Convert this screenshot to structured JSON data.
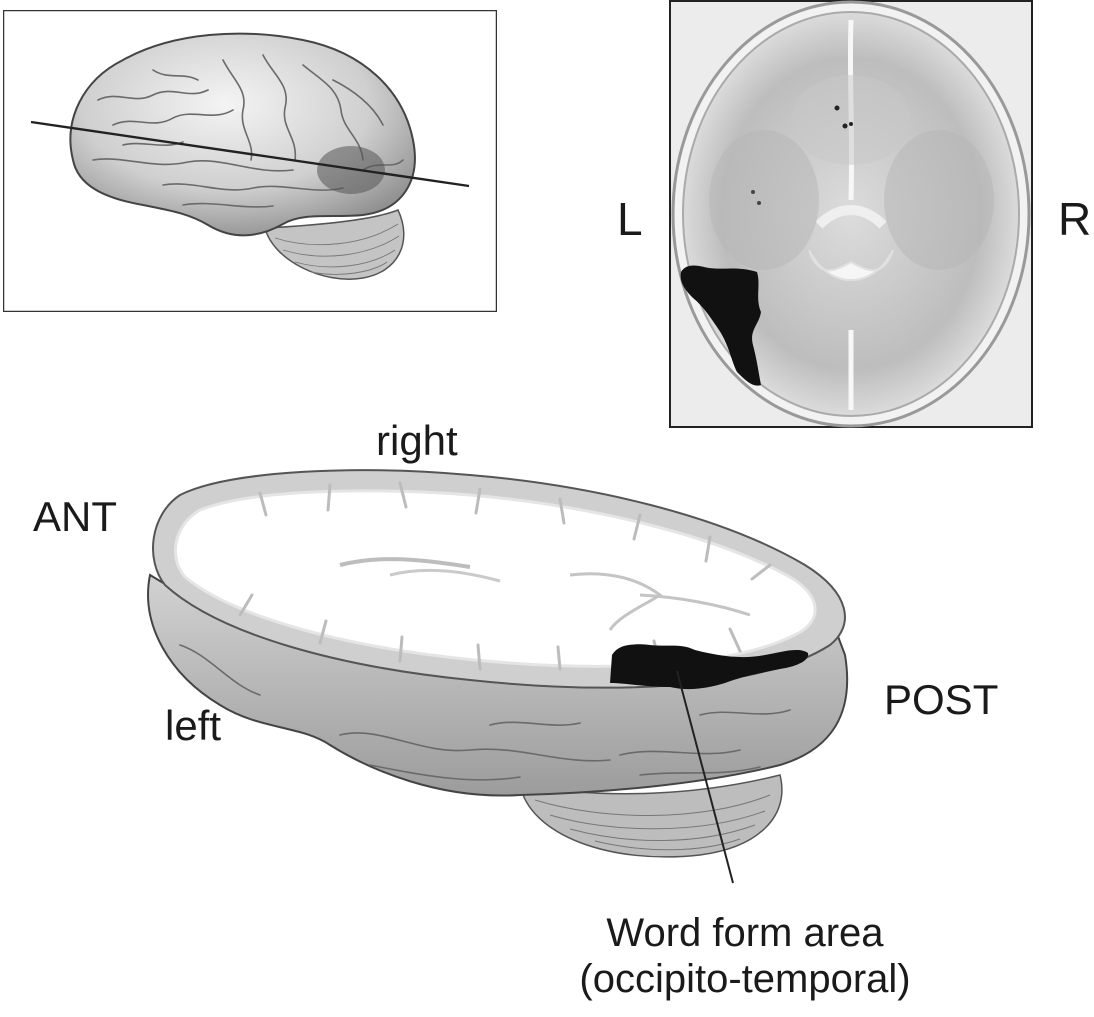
{
  "mri_labels": {
    "left": "L",
    "right": "R"
  },
  "slice_labels": {
    "top": "right",
    "front": "ANT",
    "bottom": "left",
    "back": "POST"
  },
  "callout": {
    "line1": "Word form area",
    "line2": "(occipito-temporal)"
  },
  "colors": {
    "highlight": "#111111",
    "tissue": "#cfcfcf",
    "white_matter": "#ffffff"
  }
}
